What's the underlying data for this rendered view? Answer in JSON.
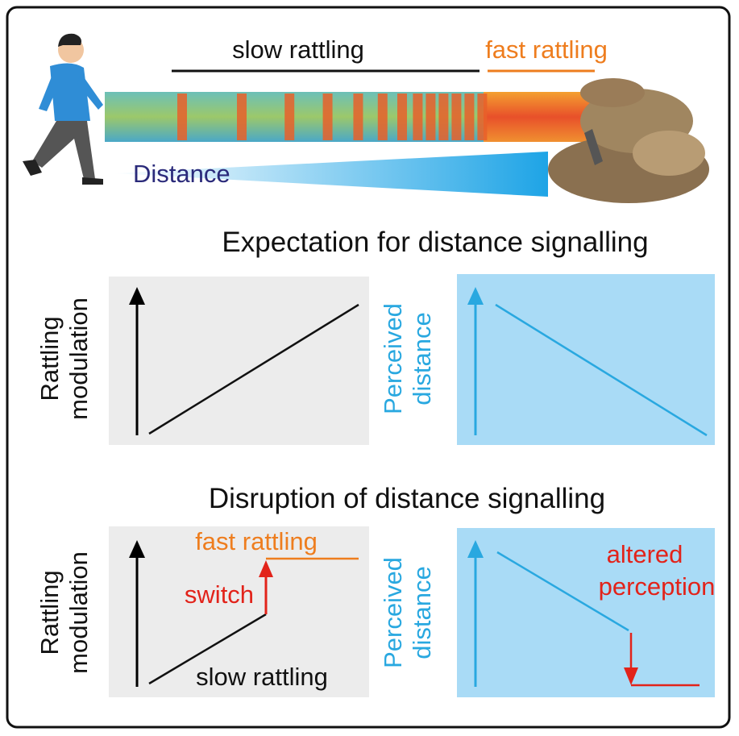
{
  "header": {
    "slow_label": "slow rattling",
    "fast_label": "fast rattling",
    "distance_label": "Distance"
  },
  "panels": [
    {
      "title": "Expectation for distance signalling",
      "left_ylabel": [
        "Rattling",
        "modulation"
      ],
      "right_ylabel": [
        "Perceived",
        "distance"
      ]
    },
    {
      "title": "Disruption of distance signalling",
      "left_ylabel": [
        "Rattling",
        "modulation"
      ],
      "right_ylabel": [
        "Perceived",
        "distance"
      ],
      "annotations": {
        "fast": "fast rattling",
        "switch": "switch",
        "slow": "slow rattling",
        "altered": [
          "altered",
          "perception"
        ]
      }
    }
  ]
}
